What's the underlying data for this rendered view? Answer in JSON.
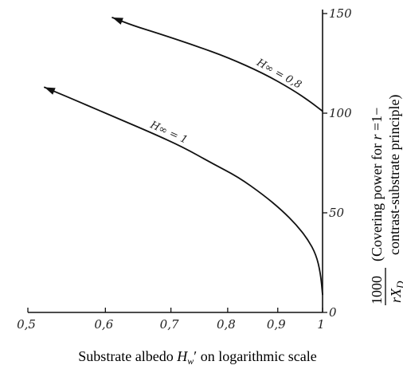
{
  "chart_data": {
    "type": "line",
    "x_scale": "log",
    "xlim": [
      0.5,
      1.0
    ],
    "ylim": [
      0,
      150
    ],
    "x_ticks": [
      "0,5",
      "0,6",
      "0,7",
      "0,8",
      "0,9",
      "1"
    ],
    "x_tick_values": [
      0.5,
      0.6,
      0.7,
      0.8,
      0.9,
      1.0
    ],
    "y_ticks": [
      "0",
      "50",
      "100",
      "150"
    ],
    "y_tick_values": [
      0,
      50,
      100,
      150
    ],
    "y_axis_position": "right",
    "grid": false,
    "xlabel": {
      "before": "Substrate albedo ",
      "symbol": "H",
      "sub": "w",
      "after": "′ on logarithmic scale"
    },
    "ylabel": {
      "fraction_numerator": "1000",
      "fraction_denominator": "rX",
      "fraction_denominator_sub": "D",
      "line1_prefix": "(Covering power for ",
      "line1_var": "r",
      "line1_suffix": " =1−",
      "line2": "contrast-substrate principle)"
    },
    "series": [
      {
        "name": "H∞ = 1",
        "points": [
          [
            1.0,
            9
          ],
          [
            0.995,
            20
          ],
          [
            0.985,
            29
          ],
          [
            0.965,
            37
          ],
          [
            0.94,
            44
          ],
          [
            0.91,
            51
          ],
          [
            0.87,
            59
          ],
          [
            0.82,
            68
          ],
          [
            0.77,
            75
          ],
          [
            0.72,
            83
          ],
          [
            0.67,
            90
          ],
          [
            0.6,
            100
          ],
          [
            0.55,
            108
          ],
          [
            0.52,
            113
          ]
        ]
      },
      {
        "name": "H∞ = 0,8",
        "points": [
          [
            1.0,
            101
          ],
          [
            0.97,
            106
          ],
          [
            0.93,
            112
          ],
          [
            0.87,
            120
          ],
          [
            0.8,
            128
          ],
          [
            0.74,
            134
          ],
          [
            0.68,
            140
          ],
          [
            0.64,
            144
          ],
          [
            0.61,
            148
          ]
        ]
      }
    ]
  }
}
